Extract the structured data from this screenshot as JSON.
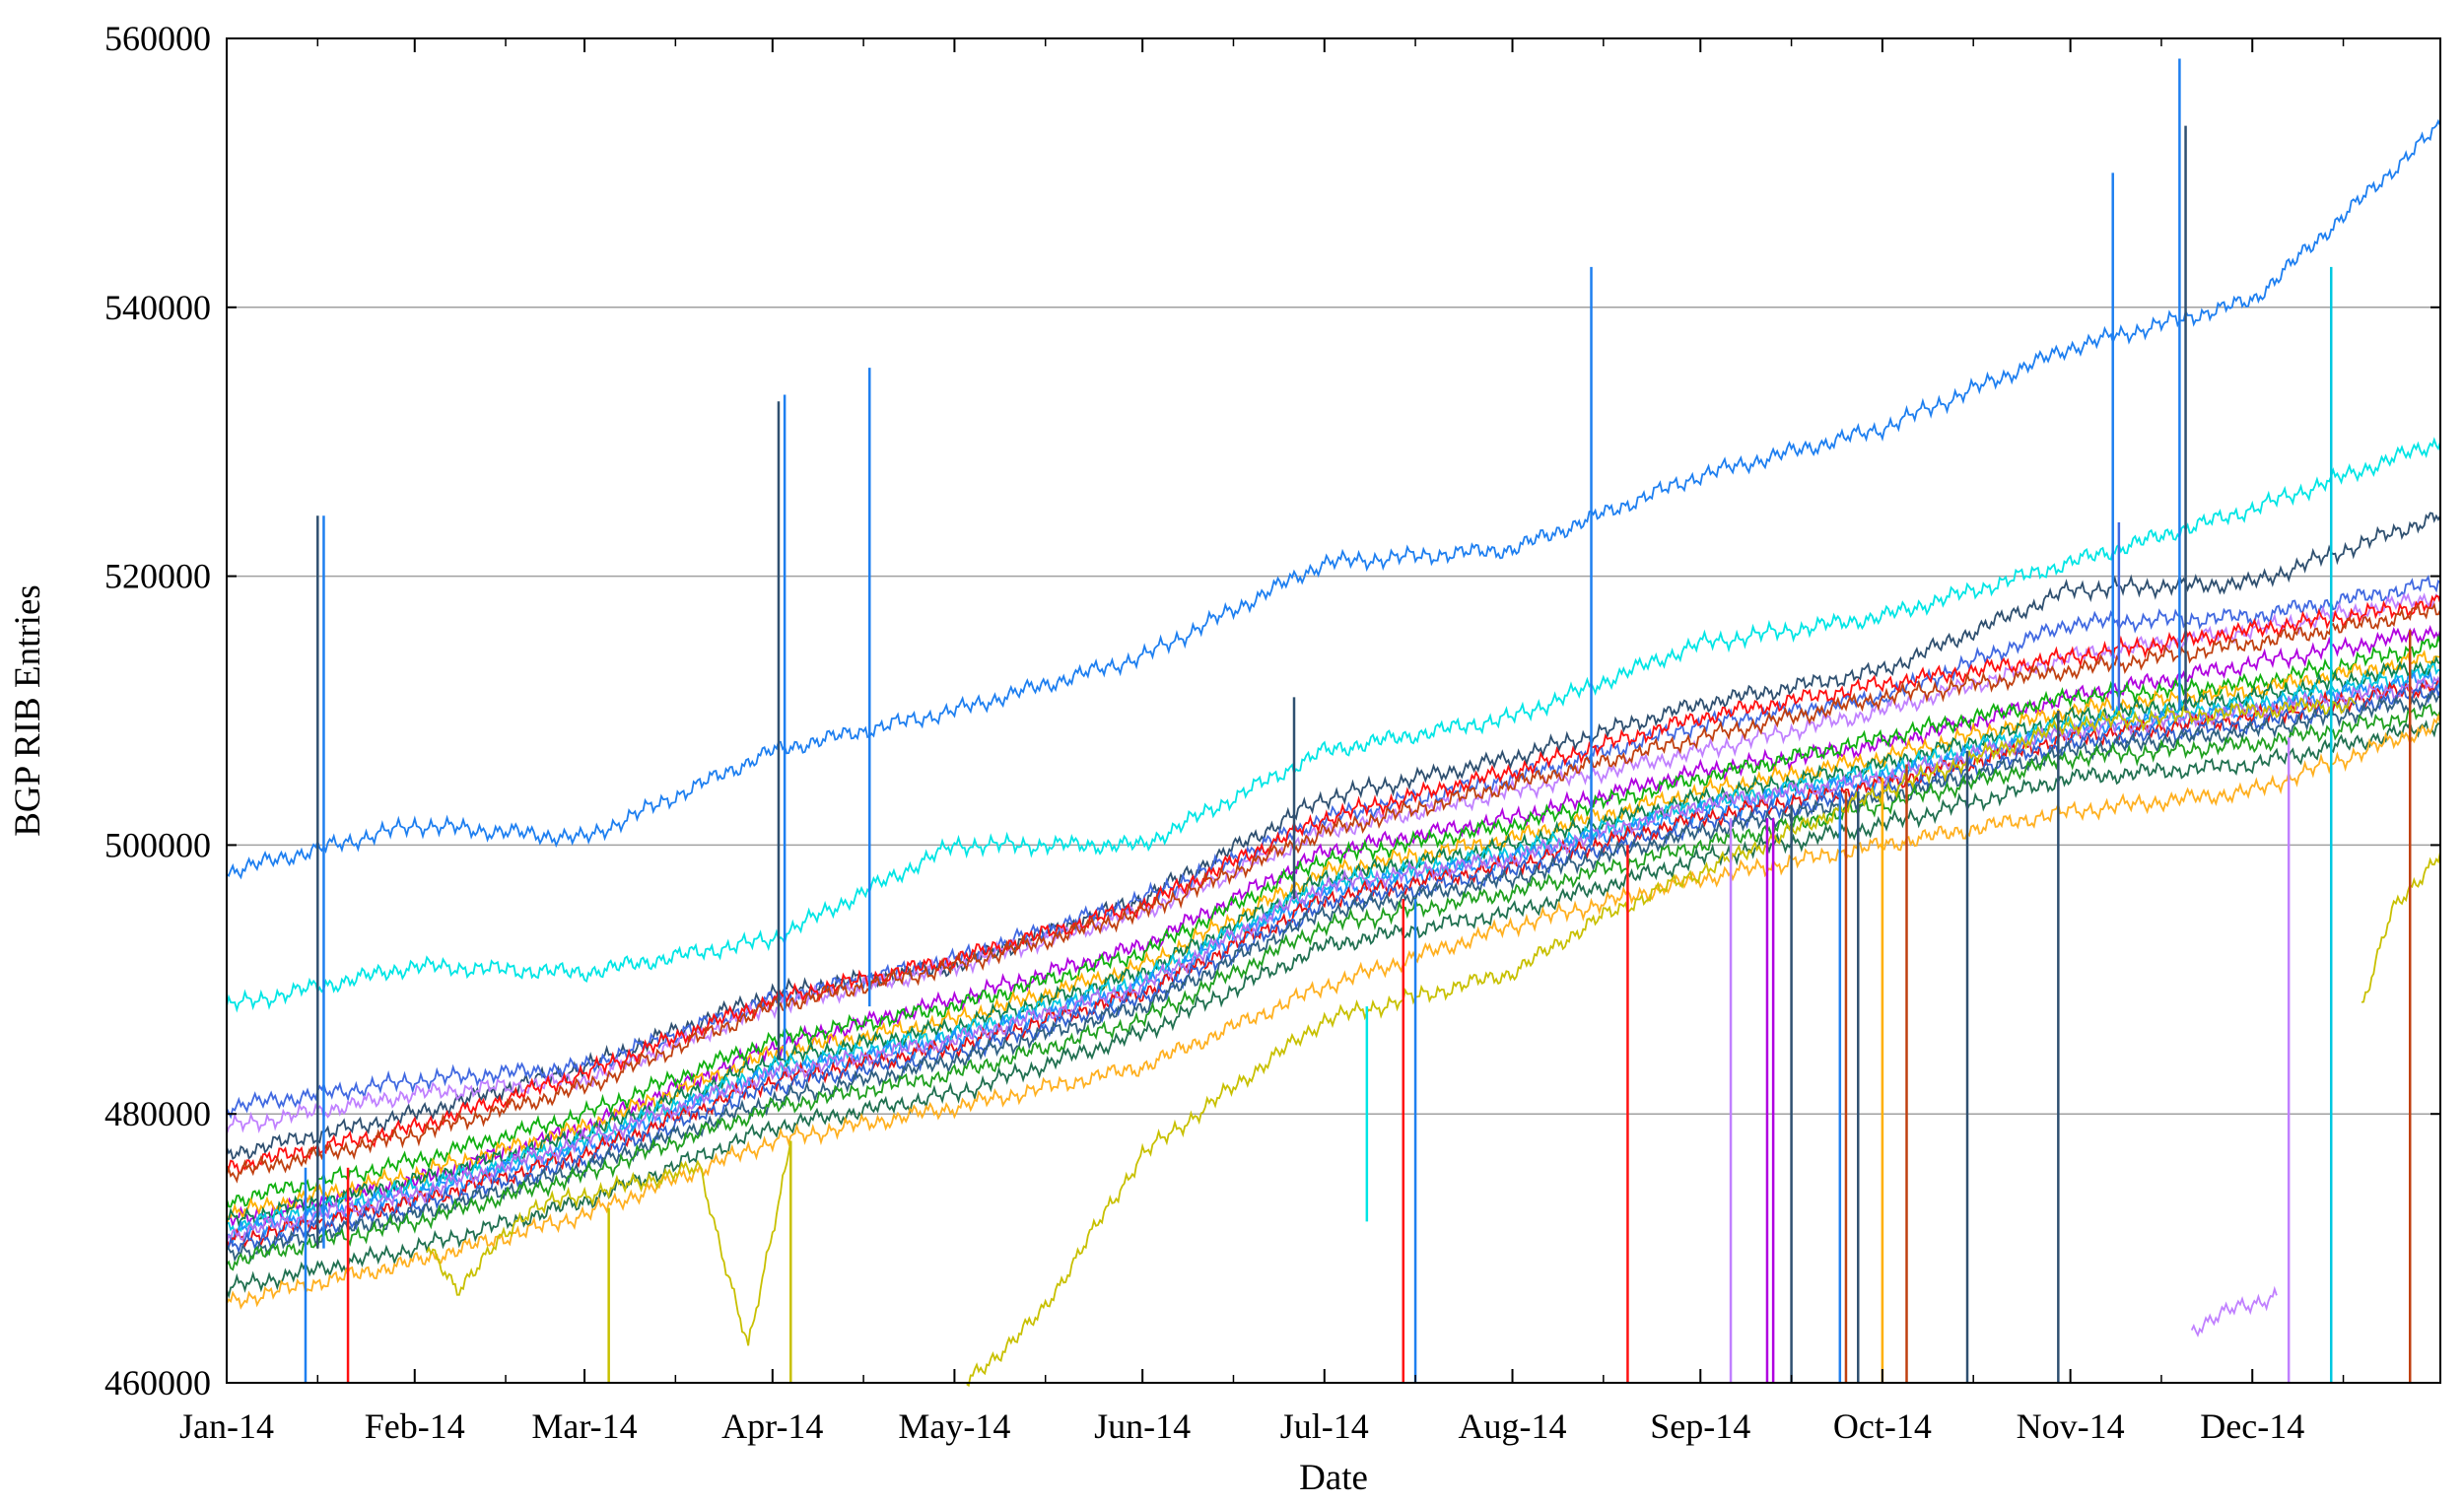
{
  "chart_data": {
    "type": "line",
    "title": "",
    "xlabel": "Date",
    "ylabel": "BGP RIB Entries",
    "xlim": [
      "2014-01-01",
      "2015-01-01"
    ],
    "ylim": [
      460000,
      560000
    ],
    "grid": {
      "horizontal": true,
      "vertical": false,
      "color": "#a0a0a0"
    },
    "legend": "none",
    "y_ticks": [
      {
        "value": 460000,
        "label": "460000"
      },
      {
        "value": 480000,
        "label": "480000"
      },
      {
        "value": 500000,
        "label": "500000"
      },
      {
        "value": 520000,
        "label": "520000"
      },
      {
        "value": 540000,
        "label": "540000"
      },
      {
        "value": 560000,
        "label": "560000"
      }
    ],
    "x_ticks": [
      {
        "date": "2014-01-01",
        "label": "Jan-14"
      },
      {
        "date": "2014-02-01",
        "label": "Feb-14"
      },
      {
        "date": "2014-03-01",
        "label": "Mar-14"
      },
      {
        "date": "2014-04-01",
        "label": "Apr-14"
      },
      {
        "date": "2014-05-01",
        "label": "May-14"
      },
      {
        "date": "2014-06-01",
        "label": "Jun-14"
      },
      {
        "date": "2014-07-01",
        "label": "Jul-14"
      },
      {
        "date": "2014-08-01",
        "label": "Aug-14"
      },
      {
        "date": "2014-09-01",
        "label": "Sep-14"
      },
      {
        "date": "2014-10-01",
        "label": "Oct-14"
      },
      {
        "date": "2014-11-01",
        "label": "Nov-14"
      },
      {
        "date": "2014-12-01",
        "label": "Dec-14"
      }
    ],
    "x": [
      "2014-01-01",
      "2014-02-01",
      "2014-03-01",
      "2014-04-01",
      "2014-05-01",
      "2014-06-01",
      "2014-07-01",
      "2014-08-01",
      "2014-09-01",
      "2014-10-01",
      "2014-11-01",
      "2014-12-01",
      "2015-01-01"
    ],
    "series": [
      {
        "color": "#1e7ff0",
        "values": [
          498000,
          501500,
          500500,
          507000,
          510000,
          514000,
          521000,
          522000,
          527500,
          531000,
          537000,
          540500,
          553500
        ]
      },
      {
        "color": "#00e5e5",
        "values": [
          488000,
          491000,
          490500,
          493000,
          500000,
          500000,
          507000,
          509500,
          515000,
          517000,
          521000,
          525000,
          530000
        ]
      },
      {
        "color": "#2f5070",
        "values": [
          477000,
          480000,
          483500,
          489000,
          491000,
          496000,
          503500,
          506500,
          510500,
          513000,
          519000,
          519500,
          524500
        ]
      },
      {
        "color": "#4169e1",
        "values": [
          480500,
          482500,
          483500,
          488500,
          491500,
          496000,
          502000,
          505000,
          509000,
          511000,
          516500,
          517000,
          519500
        ]
      },
      {
        "color": "#c080ff",
        "values": [
          479000,
          481500,
          482500,
          488000,
          491000,
          495000,
          501000,
          504000,
          507000,
          510000,
          514000,
          516000,
          518500
        ]
      },
      {
        "color": "#ff1010",
        "values": [
          476000,
          479000,
          483000,
          488500,
          491500,
          495500,
          502000,
          505500,
          509500,
          512000,
          514000,
          516000,
          518000
        ]
      },
      {
        "color": "#c04010",
        "values": [
          475500,
          478500,
          482000,
          488000,
          491000,
          495000,
          501000,
          504500,
          508000,
          511000,
          513000,
          515000,
          517500
        ]
      },
      {
        "color": "#b000e0",
        "values": [
          472000,
          475000,
          479000,
          485000,
          488500,
          492500,
          499500,
          502000,
          505500,
          507500,
          511000,
          513500,
          516000
        ]
      },
      {
        "color": "#10b010",
        "values": [
          473500,
          476500,
          480000,
          485500,
          488000,
          492000,
          499000,
          501500,
          505000,
          508000,
          511000,
          512000,
          515000
        ]
      },
      {
        "color": "#ffb000",
        "values": [
          472500,
          475500,
          479000,
          484500,
          487000,
          491000,
          498000,
          500500,
          504000,
          506500,
          510000,
          511500,
          514000
        ]
      },
      {
        "color": "#108050",
        "values": [
          472000,
          475000,
          478500,
          484000,
          486500,
          490500,
          497500,
          500000,
          503500,
          506000,
          509500,
          511000,
          513500
        ]
      },
      {
        "color": "#00c8e0",
        "values": [
          471500,
          474500,
          478000,
          483500,
          486000,
          490000,
          497000,
          499500,
          503000,
          505500,
          509000,
          510500,
          513000
        ]
      },
      {
        "color": "#1e90ff",
        "values": [
          471000,
          474000,
          477500,
          483000,
          485500,
          489500,
          496500,
          499000,
          502500,
          505000,
          508500,
          510000,
          512500
        ]
      },
      {
        "color": "#e81010",
        "values": [
          470500,
          473500,
          477000,
          482500,
          485000,
          489000,
          496000,
          498500,
          502000,
          504500,
          508000,
          509500,
          512000
        ]
      },
      {
        "color": "#b070f0",
        "values": [
          471000,
          474000,
          478000,
          483000,
          485500,
          489500,
          497000,
          499000,
          503000,
          505000,
          508500,
          510000,
          512000
        ]
      },
      {
        "color": "#3060d0",
        "values": [
          470000,
          473000,
          476500,
          482000,
          484500,
          488500,
          495500,
          498000,
          501500,
          504000,
          507500,
          509000,
          511500
        ]
      },
      {
        "color": "#306080",
        "values": [
          469500,
          472500,
          476000,
          481000,
          484000,
          488000,
          495000,
          497500,
          501000,
          503500,
          507000,
          508500,
          511000
        ]
      },
      {
        "color": "#20a020",
        "values": [
          469000,
          472000,
          475500,
          480500,
          483000,
          487000,
          494000,
          496500,
          500000,
          503000,
          506500,
          507500,
          510000
        ]
      },
      {
        "color": "#207050",
        "values": [
          467000,
          470000,
          473500,
          479000,
          481500,
          486000,
          492500,
          495000,
          499000,
          501500,
          505000,
          506000,
          509000
        ]
      },
      {
        "color": "#ffb020",
        "values": [
          466000,
          469000,
          472500,
          478000,
          480500,
          483500,
          489500,
          494000,
          497500,
          500000,
          502500,
          504000,
          509000
        ]
      }
    ],
    "segments": [
      {
        "color": "#c8c000",
        "points": [
          [
            "2014-02-03",
            470000
          ],
          [
            "2014-02-08",
            467000
          ],
          [
            "2014-02-20",
            473000
          ],
          [
            "2014-03-20",
            476000
          ],
          [
            "2014-03-28",
            462500
          ],
          [
            "2014-04-04",
            478000
          ]
        ]
      },
      {
        "color": "#c8c000",
        "points": [
          [
            "2014-05-03",
            460000
          ],
          [
            "2014-05-15",
            465000
          ],
          [
            "2014-06-01",
            477000
          ],
          [
            "2014-07-01",
            487000
          ],
          [
            "2014-08-01",
            490500
          ],
          [
            "2014-08-15",
            494500
          ],
          [
            "2014-09-01",
            498000
          ],
          [
            "2014-10-01",
            504000
          ],
          [
            "2014-11-01",
            509000
          ],
          [
            "2014-12-01",
            510000
          ],
          [
            "2014-12-18",
            510500
          ]
        ]
      },
      {
        "color": "#c8c000",
        "points": [
          [
            "2014-12-19",
            488000
          ],
          [
            "2014-12-24",
            495000
          ],
          [
            "2015-01-01",
            499500
          ]
        ]
      },
      {
        "color": "#c080ff",
        "points": [
          [
            "2014-11-21",
            464000
          ],
          [
            "2014-11-28",
            465500
          ],
          [
            "2014-12-05",
            466500
          ]
        ]
      }
    ],
    "spikes": [
      {
        "date": "2014-01-14",
        "from": 476000,
        "to": 460000,
        "color": "#1e7ff0"
      },
      {
        "date": "2014-01-16",
        "from": 470000,
        "to": 524500,
        "color": "#2f5070"
      },
      {
        "date": "2014-01-17",
        "from": 470000,
        "to": 524500,
        "color": "#1e7ff0"
      },
      {
        "date": "2014-01-21",
        "from": 476000,
        "to": 460000,
        "color": "#ff1010"
      },
      {
        "date": "2014-03-05",
        "from": 473000,
        "to": 460000,
        "color": "#c8c000"
      },
      {
        "date": "2014-04-02",
        "from": 484000,
        "to": 533000,
        "color": "#2f5070"
      },
      {
        "date": "2014-04-03",
        "from": 484000,
        "to": 533500,
        "color": "#1e7ff0"
      },
      {
        "date": "2014-04-04",
        "from": 478000,
        "to": 460000,
        "color": "#c8c000"
      },
      {
        "date": "2014-04-17",
        "from": 488000,
        "to": 535500,
        "color": "#1e7ff0"
      },
      {
        "date": "2014-06-26",
        "from": 496000,
        "to": 511000,
        "color": "#2f5070"
      },
      {
        "date": "2014-07-08",
        "from": 488000,
        "to": 472000,
        "color": "#00e5e5"
      },
      {
        "date": "2014-07-14",
        "from": 496000,
        "to": 460000,
        "color": "#ff1010"
      },
      {
        "date": "2014-07-16",
        "from": 496000,
        "to": 460000,
        "color": "#1e7ff0"
      },
      {
        "date": "2014-08-14",
        "from": 500000,
        "to": 543000,
        "color": "#1e7ff0"
      },
      {
        "date": "2014-08-20",
        "from": 500000,
        "to": 460000,
        "color": "#ff1010"
      },
      {
        "date": "2014-09-06",
        "from": 502000,
        "to": 460000,
        "color": "#c080ff"
      },
      {
        "date": "2014-09-12",
        "from": 502000,
        "to": 460000,
        "color": "#b000e0"
      },
      {
        "date": "2014-09-13",
        "from": 502000,
        "to": 460000,
        "color": "#b000e0"
      },
      {
        "date": "2014-09-16",
        "from": 503000,
        "to": 460000,
        "color": "#2f5070"
      },
      {
        "date": "2014-09-24",
        "from": 504000,
        "to": 460000,
        "color": "#1e7ff0"
      },
      {
        "date": "2014-09-25",
        "from": 504000,
        "to": 460000,
        "color": "#c04010"
      },
      {
        "date": "2014-09-27",
        "from": 504000,
        "to": 460000,
        "color": "#2f5070"
      },
      {
        "date": "2014-10-01",
        "from": 505000,
        "to": 460000,
        "color": "#ffb000"
      },
      {
        "date": "2014-10-05",
        "from": 506000,
        "to": 460000,
        "color": "#c04010"
      },
      {
        "date": "2014-10-15",
        "from": 507000,
        "to": 460000,
        "color": "#2f5070"
      },
      {
        "date": "2014-10-30",
        "from": 510000,
        "to": 460000,
        "color": "#2f5070"
      },
      {
        "date": "2014-11-08",
        "from": 510000,
        "to": 550000,
        "color": "#1e7ff0"
      },
      {
        "date": "2014-11-09",
        "from": 510000,
        "to": 524000,
        "color": "#4169e1"
      },
      {
        "date": "2014-11-19",
        "from": 510000,
        "to": 558500,
        "color": "#1e7ff0"
      },
      {
        "date": "2014-11-20",
        "from": 510000,
        "to": 553500,
        "color": "#2f5070"
      },
      {
        "date": "2014-12-07",
        "from": 508000,
        "to": 460000,
        "color": "#c080ff"
      },
      {
        "date": "2014-12-14",
        "from": 543000,
        "to": 460000,
        "color": "#00c8e0"
      },
      {
        "date": "2014-12-27",
        "from": 516000,
        "to": 460000,
        "color": "#c04010"
      }
    ]
  }
}
